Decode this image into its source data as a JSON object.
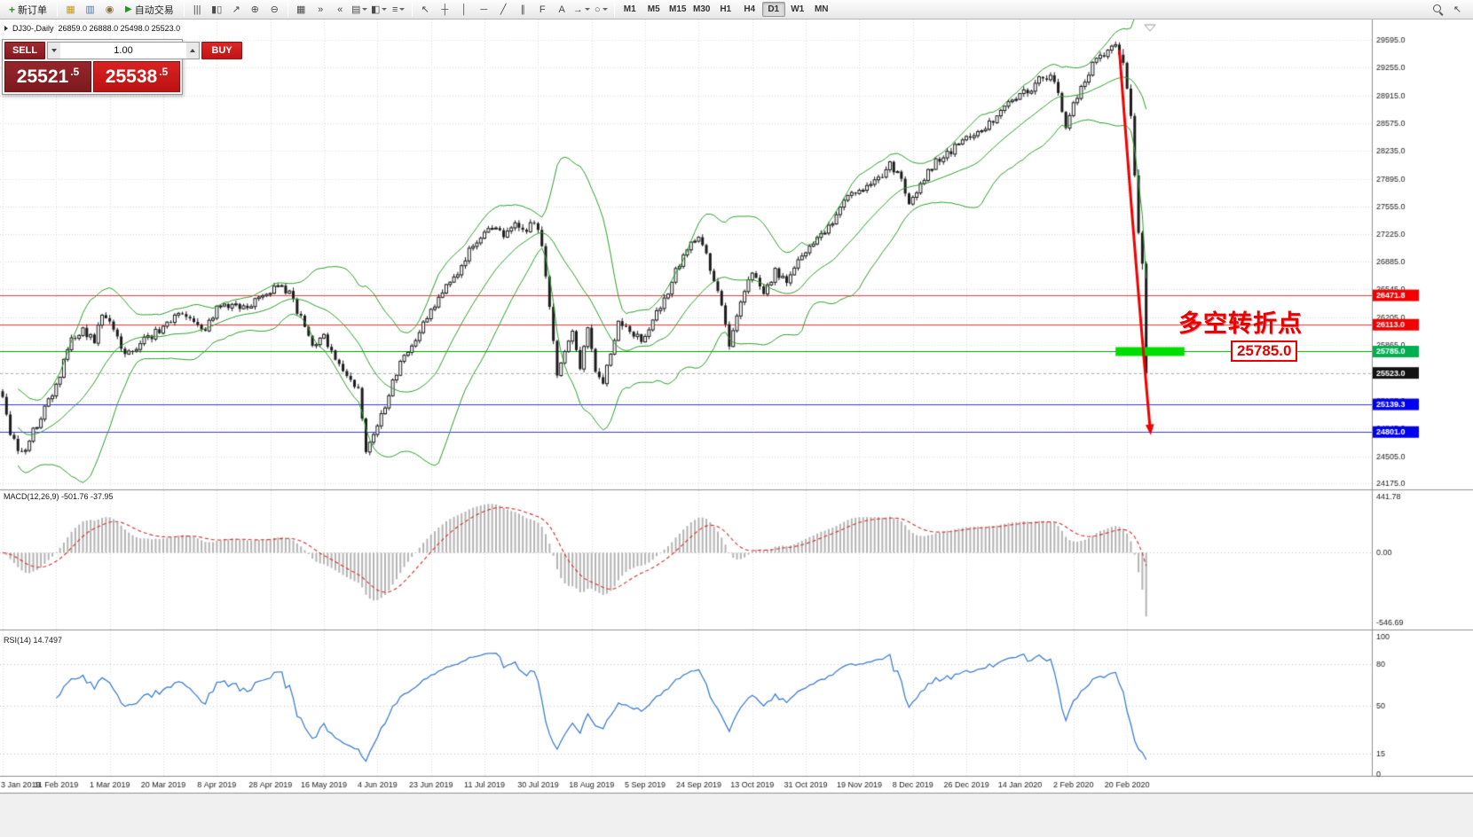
{
  "toolbar": {
    "new_order": {
      "label": "新订单",
      "glyph": "+"
    },
    "auto_trading": {
      "label": "自动交易",
      "glyph": "▶"
    },
    "left_icons": [
      {
        "name": "market-watch-icon",
        "glyph": "▦",
        "color": "#c99a17"
      },
      {
        "name": "data-window-icon",
        "glyph": "▥",
        "color": "#4a76a8"
      },
      {
        "name": "alerts-icon",
        "glyph": "◉",
        "color": "#8a6d3b"
      }
    ],
    "chart_type_icons": [
      {
        "name": "bar-chart-icon",
        "glyph": "|||"
      },
      {
        "name": "candlestick-chart-icon",
        "glyph": "▮▯"
      },
      {
        "name": "line-chart-icon",
        "glyph": "↗"
      }
    ],
    "zoom_icons": [
      {
        "name": "zoom-in-icon",
        "glyph": "⊕"
      },
      {
        "name": "zoom-out-icon",
        "glyph": "⊖"
      }
    ],
    "window_icons": [
      {
        "name": "tile-windows-icon",
        "glyph": "▦"
      },
      {
        "name": "auto-scroll-icon",
        "glyph": "»"
      },
      {
        "name": "chart-shift-icon",
        "glyph": "«"
      },
      {
        "name": "new-chart-icon",
        "glyph": "▤",
        "dropdown": true
      },
      {
        "name": "profiles-icon",
        "glyph": "◧",
        "dropdown": true
      },
      {
        "name": "templates-icon",
        "glyph": "≡",
        "dropdown": true
      }
    ],
    "drawing_icons": [
      {
        "name": "cursor-icon",
        "glyph": "↖"
      },
      {
        "name": "crosshair-icon",
        "glyph": "┼"
      },
      {
        "name": "vertical-line-icon",
        "glyph": "│"
      },
      {
        "name": "horizontal-line-icon",
        "glyph": "─"
      },
      {
        "name": "trendline-icon",
        "glyph": "╱"
      },
      {
        "name": "channel-icon",
        "glyph": "∥"
      },
      {
        "name": "fibonacci-icon",
        "glyph": "F"
      },
      {
        "name": "text-icon",
        "glyph": "A"
      },
      {
        "name": "arrows-icon",
        "glyph": "→",
        "dropdown": true
      },
      {
        "name": "shapes-icon",
        "glyph": "○",
        "dropdown": true
      }
    ],
    "timeframes": [
      {
        "label": "M1"
      },
      {
        "label": "M5"
      },
      {
        "label": "M15"
      },
      {
        "label": "M30"
      },
      {
        "label": "H1"
      },
      {
        "label": "H4"
      },
      {
        "label": "D1",
        "active": true
      },
      {
        "label": "W1"
      },
      {
        "label": "MN"
      }
    ],
    "right_icons": [
      {
        "name": "search-icon",
        "glyph": ""
      },
      {
        "name": "quick-cursor-icon",
        "glyph": "↖"
      }
    ]
  },
  "chart_header": {
    "symbol_period": "DJ30-,Daily",
    "ohlc_text": "26859.0 26888.0 25498.0 25523.0"
  },
  "trade_panel": {
    "sell_label": "SELL",
    "buy_label": "BUY",
    "volume": "1.00",
    "sell_price_main": "25521",
    "sell_price_frac": ".5",
    "buy_price_main": "25538",
    "buy_price_frac": ".5"
  },
  "chart_data": {
    "type": "candlestick",
    "symbol": "DJ30-",
    "period": "Daily",
    "ohlc": {
      "open": "26859.0",
      "high": "26888.0",
      "low": "25498.0",
      "close": "25523.0"
    },
    "price_axis": {
      "top_price": 29595.0,
      "bottom_price": 24175.0,
      "ticks": [
        29595.0,
        29255.0,
        28915.0,
        28575.0,
        28235.0,
        27895.0,
        27555.0,
        27225.0,
        26885.0,
        26545.0,
        26205.0,
        25865.0,
        25525.0,
        25185.0,
        24845.0,
        24505.0,
        24175.0
      ]
    },
    "date_axis": [
      "3 Jan 2019",
      "11 Feb 2019",
      "1 Mar 2019",
      "20 Mar 2019",
      "8 Apr 2019",
      "28 Apr 2019",
      "16 May 2019",
      "4 Jun 2019",
      "23 Jun 2019",
      "11 Jul 2019",
      "30 Jul 2019",
      "18 Aug 2019",
      "5 Sep 2019",
      "24 Sep 2019",
      "13 Oct 2019",
      "31 Oct 2019",
      "19 Nov 2019",
      "8 Dec 2019",
      "26 Dec 2019",
      "14 Jan 2020",
      "2 Feb 2020",
      "20 Feb 2020"
    ],
    "levels": [
      {
        "value": 26471.8,
        "label": "26471.8",
        "color": "#ff3333",
        "tag_bg": "#f20000"
      },
      {
        "value": 26113.0,
        "label": "26113.0",
        "color": "#ff3333",
        "tag_bg": "#f20000"
      },
      {
        "value": 25785.0,
        "label": "25785.0",
        "color": "#00a000",
        "tag_bg": "#00b050"
      },
      {
        "value": 25139.3,
        "label": "25139.3",
        "color": "#3333ff",
        "tag_bg": "#0000f0"
      },
      {
        "value": 24801.0,
        "label": "24801.0",
        "color": "#3333ff",
        "tag_bg": "#0000f0"
      }
    ],
    "bid": {
      "value": 25523.0,
      "label": "25523.0",
      "tag_bg": "#111111",
      "line_color": "#b3b3b3"
    },
    "bollinger": {
      "period": 20,
      "deviation": 2,
      "color": "#2ca02c"
    },
    "candles": {
      "count": 300,
      "up_fill": "#ffffff",
      "down_fill": "#1b1b1b",
      "stroke": "#1b1b1b"
    },
    "price_waypoints": [
      [
        0,
        25250
      ],
      [
        2,
        24800
      ],
      [
        5,
        24520
      ],
      [
        9,
        24900
      ],
      [
        14,
        25350
      ],
      [
        18,
        25950
      ],
      [
        21,
        26050
      ],
      [
        24,
        25900
      ],
      [
        26,
        26230
      ],
      [
        29,
        26060
      ],
      [
        32,
        25720
      ],
      [
        35,
        25850
      ],
      [
        38,
        25950
      ],
      [
        41,
        26050
      ],
      [
        44,
        26150
      ],
      [
        47,
        26260
      ],
      [
        50,
        26160
      ],
      [
        53,
        26060
      ],
      [
        56,
        26300
      ],
      [
        60,
        26380
      ],
      [
        63,
        26300
      ],
      [
        66,
        26420
      ],
      [
        69,
        26500
      ],
      [
        72,
        26620
      ],
      [
        75,
        26500
      ],
      [
        78,
        26180
      ],
      [
        81,
        25860
      ],
      [
        84,
        25960
      ],
      [
        87,
        25660
      ],
      [
        90,
        25460
      ],
      [
        93,
        25300
      ],
      [
        95,
        24580
      ],
      [
        97,
        24750
      ],
      [
        99,
        25000
      ],
      [
        101,
        25260
      ],
      [
        104,
        25660
      ],
      [
        107,
        25860
      ],
      [
        110,
        26110
      ],
      [
        113,
        26360
      ],
      [
        116,
        26560
      ],
      [
        119,
        26760
      ],
      [
        122,
        27010
      ],
      [
        125,
        27160
      ],
      [
        128,
        27330
      ],
      [
        131,
        27210
      ],
      [
        134,
        27330
      ],
      [
        137,
        27260
      ],
      [
        139,
        27390
      ],
      [
        141,
        27110
      ],
      [
        143,
        26310
      ],
      [
        145,
        25510
      ],
      [
        147,
        25760
      ],
      [
        149,
        26060
      ],
      [
        151,
        25610
      ],
      [
        153,
        26060
      ],
      [
        155,
        25500
      ],
      [
        157,
        25420
      ],
      [
        159,
        25760
      ],
      [
        161,
        26160
      ],
      [
        164,
        26060
      ],
      [
        167,
        25910
      ],
      [
        170,
        26160
      ],
      [
        173,
        26410
      ],
      [
        176,
        26760
      ],
      [
        179,
        27060
      ],
      [
        182,
        27210
      ],
      [
        185,
        26810
      ],
      [
        188,
        26360
      ],
      [
        190,
        25830
      ],
      [
        193,
        26360
      ],
      [
        196,
        26760
      ],
      [
        199,
        26510
      ],
      [
        202,
        26760
      ],
      [
        205,
        26660
      ],
      [
        208,
        26910
      ],
      [
        211,
        27060
      ],
      [
        214,
        27210
      ],
      [
        217,
        27360
      ],
      [
        220,
        27610
      ],
      [
        223,
        27760
      ],
      [
        226,
        27810
      ],
      [
        229,
        27910
      ],
      [
        232,
        28060
      ],
      [
        235,
        27910
      ],
      [
        237,
        27560
      ],
      [
        239,
        27690
      ],
      [
        241,
        27910
      ],
      [
        244,
        28110
      ],
      [
        247,
        28210
      ],
      [
        250,
        28310
      ],
      [
        253,
        28410
      ],
      [
        256,
        28510
      ],
      [
        259,
        28610
      ],
      [
        262,
        28810
      ],
      [
        265,
        28910
      ],
      [
        268,
        28960
      ],
      [
        271,
        29110
      ],
      [
        274,
        29160
      ],
      [
        276,
        28910
      ],
      [
        278,
        28560
      ],
      [
        280,
        28810
      ],
      [
        283,
        29110
      ],
      [
        286,
        29360
      ],
      [
        289,
        29460
      ],
      [
        291,
        29530
      ],
      [
        293,
        29320
      ],
      [
        294,
        29000
      ],
      [
        295,
        28650
      ],
      [
        296,
        27950
      ],
      [
        297,
        27250
      ],
      [
        298,
        26859
      ],
      [
        299,
        25523
      ]
    ],
    "annotations": {
      "turning_point_text": "多空转折点",
      "turning_point_color": "#e80000",
      "price_callout": "25785.0",
      "green_bar": {
        "from_index": 291,
        "to_index": 309,
        "price": 25785,
        "color": "#00dd00"
      },
      "arrow": {
        "points": [
          [
            292,
            29460
          ],
          [
            296.8,
            26500
          ],
          [
            300,
            24860
          ]
        ],
        "color": "#f00000"
      }
    },
    "indicators": [
      {
        "name": "macd",
        "label": "MACD(12,26,9) -501.76 -37.95",
        "fast": 12,
        "slow": 26,
        "signal": 9,
        "axis_ticks": [
          "441.78",
          "0.00",
          "-546.69"
        ],
        "axis_max": 441.78,
        "axis_min": -546.69,
        "histogram_color": "#b4b4b4",
        "signal_color": "#dd2c2c"
      },
      {
        "name": "rsi",
        "label": "RSI(14) 14.7497",
        "period": 14,
        "value": 14.7497,
        "axis_ticks": [
          100,
          80,
          50,
          15,
          0
        ],
        "levels": [
          80,
          50,
          15
        ],
        "color": "#3f7fd0",
        "axis_max": 100,
        "axis_min": 0
      }
    ]
  }
}
